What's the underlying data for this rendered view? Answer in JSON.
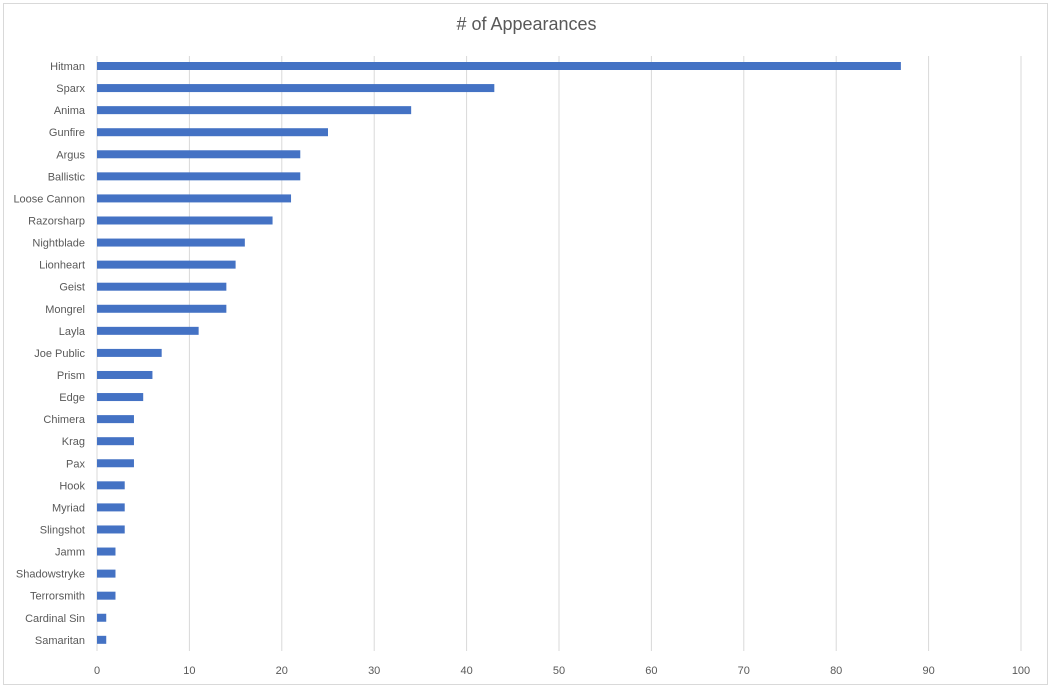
{
  "chart_data": {
    "type": "bar",
    "orientation": "horizontal",
    "title": "# of Appearances",
    "xlabel": "",
    "ylabel": "",
    "xlim": [
      0,
      100
    ],
    "x_ticks": [
      "0",
      "10",
      "20",
      "30",
      "40",
      "50",
      "60",
      "70",
      "80",
      "90",
      "100"
    ],
    "grid": true,
    "legend": "none",
    "bar_color": "#4472c4",
    "categories": [
      "Hitman",
      "Sparx",
      "Anima",
      "Gunfire",
      "Argus",
      "Ballistic",
      "Loose Cannon",
      "Razorsharp",
      "Nightblade",
      "Lionheart",
      "Geist",
      "Mongrel",
      "Layla",
      "Joe Public",
      "Prism",
      "Edge",
      "Chimera",
      "Krag",
      "Pax",
      "Hook",
      "Myriad",
      "Slingshot",
      "Jamm",
      "Shadowstryke",
      "Terrorsmith",
      "Cardinal Sin",
      "Samaritan"
    ],
    "values": [
      87,
      43,
      34,
      25,
      22,
      22,
      21,
      19,
      16,
      15,
      14,
      14,
      11,
      7,
      6,
      5,
      4,
      4,
      4,
      3,
      3,
      3,
      2,
      2,
      2,
      1,
      1
    ]
  }
}
